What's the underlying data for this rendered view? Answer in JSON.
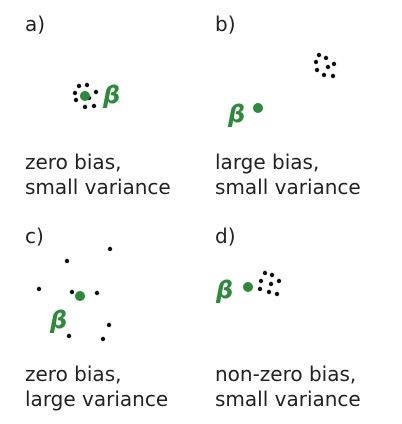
{
  "colors": {
    "estimate": "#2d8a3b",
    "samples": "#111111",
    "text": "#222222"
  },
  "symbol": "β",
  "panels": [
    {
      "label": "a)",
      "caption_line1": "zero bias,",
      "caption_line2": "small variance"
    },
    {
      "label": "b)",
      "caption_line1": "large bias,",
      "caption_line2": "small variance"
    },
    {
      "label": "c)",
      "caption_line1": "zero bias,",
      "caption_line2": "large variance"
    },
    {
      "label": "d)",
      "caption_line1": "non-zero bias,",
      "caption_line2": "small variance"
    }
  ]
}
